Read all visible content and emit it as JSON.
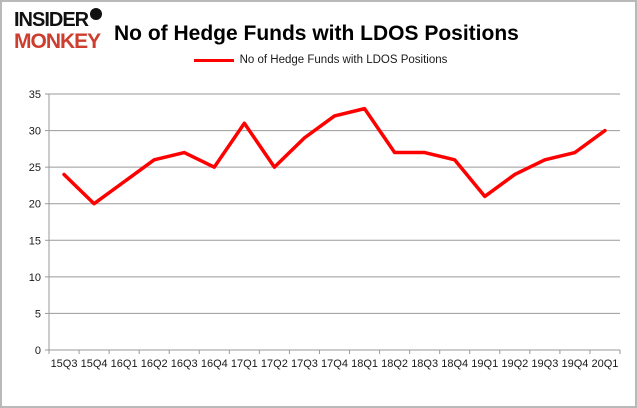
{
  "brand": {
    "line1": "INSIDER",
    "line2": "MONKEY",
    "red": "#cd3e2e",
    "black": "#111111"
  },
  "header": {
    "title": "No of Hedge Funds with LDOS Positions"
  },
  "legend": {
    "label": "No of Hedge Funds with LDOS Positions"
  },
  "chart_data": {
    "type": "line",
    "title": "No of Hedge Funds with LDOS Positions",
    "categories": [
      "15Q3",
      "15Q4",
      "16Q1",
      "16Q2",
      "16Q3",
      "16Q4",
      "17Q1",
      "17Q2",
      "17Q3",
      "17Q4",
      "18Q1",
      "18Q2",
      "18Q3",
      "18Q4",
      "19Q1",
      "19Q2",
      "19Q3",
      "19Q4",
      "20Q1"
    ],
    "series": [
      {
        "name": "No of Hedge Funds with LDOS Positions",
        "values": [
          24,
          20,
          23,
          26,
          27,
          25,
          31,
          25,
          29,
          32,
          33,
          27,
          27,
          26,
          21,
          24,
          26,
          27,
          30
        ],
        "color": "#ff0000"
      }
    ],
    "xlabel": "",
    "ylabel": "",
    "ylim": [
      0,
      35
    ],
    "yticks": [
      0,
      5,
      10,
      15,
      20,
      25,
      30,
      35
    ],
    "grid": true,
    "grid_color": "#9a9a9a",
    "axis_text_color": "#1a1a1a",
    "legend_position": "top-center"
  }
}
